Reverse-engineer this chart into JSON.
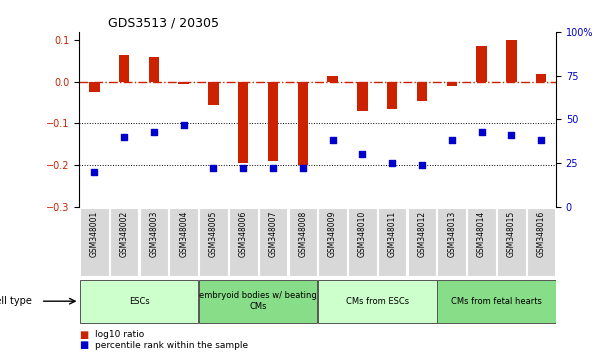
{
  "title": "GDS3513 / 20305",
  "samples": [
    "GSM348001",
    "GSM348002",
    "GSM348003",
    "GSM348004",
    "GSM348005",
    "GSM348006",
    "GSM348007",
    "GSM348008",
    "GSM348009",
    "GSM348010",
    "GSM348011",
    "GSM348012",
    "GSM348013",
    "GSM348014",
    "GSM348015",
    "GSM348016"
  ],
  "log10_ratio": [
    -0.025,
    0.065,
    0.06,
    -0.005,
    -0.055,
    -0.195,
    -0.19,
    -0.2,
    0.015,
    -0.07,
    -0.065,
    -0.045,
    -0.01,
    0.085,
    0.1,
    0.02
  ],
  "percentile_rank_pct": [
    20,
    40,
    43,
    47,
    22,
    22,
    22,
    22,
    38,
    30,
    25,
    24,
    38,
    43,
    41,
    38
  ],
  "cell_types": [
    {
      "label": "ESCs",
      "start": 0,
      "end": 3,
      "color": "#ccffcc"
    },
    {
      "label": "embryoid bodies w/ beating\nCMs",
      "start": 4,
      "end": 7,
      "color": "#88dd88"
    },
    {
      "label": "CMs from ESCs",
      "start": 8,
      "end": 11,
      "color": "#ccffcc"
    },
    {
      "label": "CMs from fetal hearts",
      "start": 12,
      "end": 15,
      "color": "#88dd88"
    }
  ],
  "bar_color": "#cc2200",
  "dot_color": "#0000cc",
  "dashed_line_color": "#cc2200",
  "ylim_left": [
    -0.3,
    0.12
  ],
  "ylim_right": [
    0,
    100
  ],
  "yticks_left": [
    -0.3,
    -0.2,
    -0.1,
    0.0,
    0.1
  ],
  "yticks_right": [
    0,
    25,
    50,
    75,
    100
  ],
  "ytick_labels_right": [
    "0",
    "25",
    "50",
    "75",
    "100%"
  ],
  "grid_dotted_values": [
    -0.1,
    -0.2
  ],
  "background_color": "#ffffff"
}
